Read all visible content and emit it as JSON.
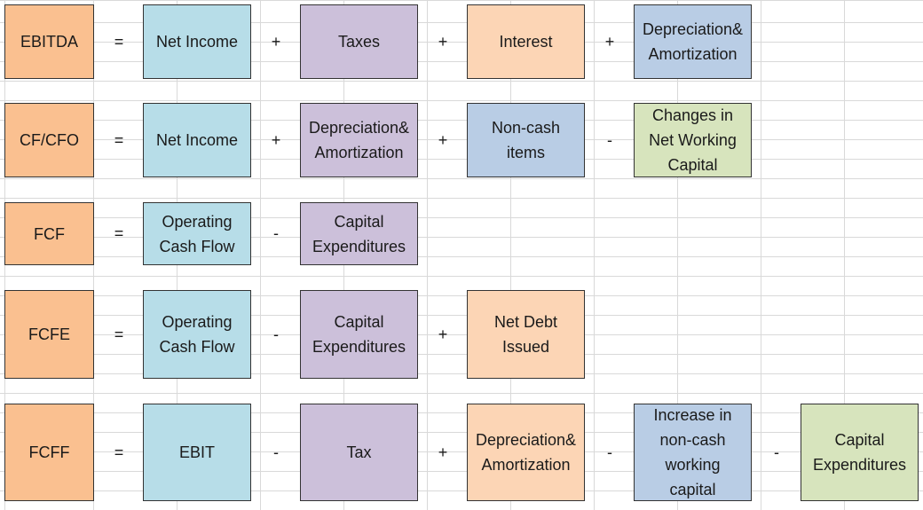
{
  "colors": {
    "label": "#fac090",
    "blue": "#b7dde8",
    "purple": "#ccc0da",
    "peach": "#fcd5b5",
    "steel": "#b9cde5",
    "green": "#d7e4bd"
  },
  "rows": [
    {
      "label": "EBITDA",
      "equals": "=",
      "terms": [
        {
          "text": "Net Income",
          "color": "blue"
        },
        {
          "op": "+",
          "text": "Taxes",
          "color": "purple"
        },
        {
          "op": "+",
          "text": "Interest",
          "color": "peach"
        },
        {
          "op": "+",
          "text": "Depreciation&\nAmortization",
          "color": "steel"
        }
      ]
    },
    {
      "label": "CF/CFO",
      "equals": "=",
      "terms": [
        {
          "text": "Net Income",
          "color": "blue"
        },
        {
          "op": "+",
          "text": "Depreciation&\nAmortization",
          "color": "purple"
        },
        {
          "op": "+",
          "text": "Non-cash\nitems",
          "color": "steel"
        },
        {
          "op": "-",
          "text": "Changes in\nNet Working\nCapital",
          "color": "green"
        }
      ]
    },
    {
      "label": "FCF",
      "equals": "=",
      "terms": [
        {
          "text": "Operating\nCash Flow",
          "color": "blue"
        },
        {
          "op": "-",
          "text": "Capital\nExpenditures",
          "color": "purple"
        }
      ]
    },
    {
      "label": "FCFE",
      "equals": "=",
      "terms": [
        {
          "text": "Operating\nCash Flow",
          "color": "blue"
        },
        {
          "op": "-",
          "text": "Capital\nExpenditures",
          "color": "purple"
        },
        {
          "op": "+",
          "text": "Net Debt\nIssued",
          "color": "peach"
        }
      ]
    },
    {
      "label": "FCFF",
      "equals": "=",
      "terms": [
        {
          "text": "EBIT",
          "color": "blue"
        },
        {
          "op": "-",
          "text": "Tax",
          "color": "purple"
        },
        {
          "op": "+",
          "text": "Depreciation&\nAmortization",
          "color": "peach"
        },
        {
          "op": "-",
          "text": "Increase in\nnon-cash\nworking\ncapital",
          "color": "steel"
        },
        {
          "op": "-",
          "text": "Capital\nExpenditures",
          "color": "green"
        }
      ]
    }
  ]
}
